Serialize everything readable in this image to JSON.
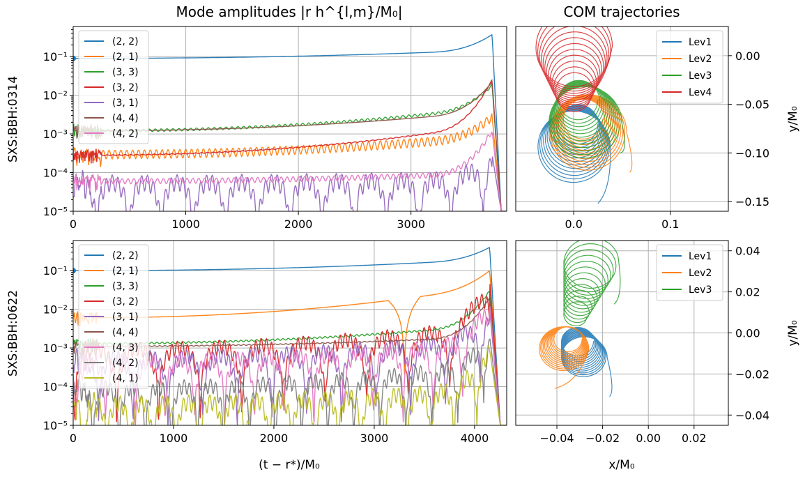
{
  "figure": {
    "left_title": "Mode amplitudes |r h^{l,m}/M₀|",
    "right_title": "COM trajectories",
    "xlabel_left": "(t − r*)/M₀",
    "xlabel_right": "x/M₀",
    "ylabel_right": "y/M₀",
    "row_labels": [
      "SXS:BBH:0314",
      "SXS:BBH:0622"
    ]
  },
  "colors": {
    "blue": "#1f77b4",
    "orange": "#ff7f0e",
    "green": "#2ca02c",
    "red": "#d62728",
    "purple": "#9467bd",
    "brown": "#8c564b",
    "pink": "#e377c2",
    "gray": "#7f7f7f",
    "olive": "#bcbd22"
  },
  "chart_data": [
    {
      "type": "line",
      "name": "amp_0314",
      "row_label": "SXS:BBH:0314",
      "title": "Mode amplitudes |r h^{l,m}/M₀|",
      "xlabel": "",
      "ylabel": "",
      "yscale": "log",
      "xlim": [
        0,
        3850
      ],
      "ylim": [
        1e-05,
        0.6
      ],
      "xticks": [
        0,
        1000,
        2000,
        3000
      ],
      "xticklabels": [
        "0",
        "1000",
        "2000",
        "3000"
      ],
      "yticks": [
        1e-05,
        0.0001,
        0.001,
        0.01,
        0.1
      ],
      "yticklabels": [
        "10⁻⁵",
        "10⁻⁴",
        "10⁻³",
        "10⁻²",
        "10⁻¹"
      ],
      "grid": true,
      "legend_position": "upper-left",
      "t_peak": 3720,
      "series": [
        {
          "name": "(2, 2)",
          "color": "blue",
          "start": 0.09,
          "end": 0.15,
          "peak": 0.37,
          "osc": 0,
          "dips": 0
        },
        {
          "name": "(2, 1)",
          "color": "orange",
          "start": 0.0003,
          "end": 0.0009,
          "peak": 0.0028,
          "osc": 0.5,
          "dips": 0
        },
        {
          "name": "(3, 3)",
          "color": "green",
          "start": 0.0012,
          "end": 0.005,
          "peak": 0.018,
          "osc": 0.15,
          "dips": 0
        },
        {
          "name": "(3, 2)",
          "color": "red",
          "start": 0.00028,
          "end": 0.0018,
          "peak": 0.025,
          "osc": 0.05,
          "dips": 0
        },
        {
          "name": "(3, 1)",
          "color": "purple",
          "start": 6e-05,
          "end": 8e-05,
          "peak": 0.0003,
          "osc": 0.9,
          "dips": 13
        },
        {
          "name": "(4, 4)",
          "color": "brown",
          "start": 0.0012,
          "end": 0.004,
          "peak": 0.022,
          "osc": 0,
          "dips": 0
        },
        {
          "name": "(4, 2)",
          "color": "pink",
          "start": 6e-05,
          "end": 0.0001,
          "peak": 0.0012,
          "osc": 0.3,
          "dips": 0
        }
      ]
    },
    {
      "type": "scatter",
      "name": "com_0314",
      "title": "COM trajectories",
      "xlabel": "",
      "ylabel": "y/M₀",
      "xlim": [
        -0.06,
        0.16
      ],
      "ylim": [
        -0.16,
        0.03
      ],
      "xticks": [
        0.0,
        0.1
      ],
      "xticklabels": [
        "0.0",
        "0.1"
      ],
      "yticks": [
        0.0,
        -0.05,
        -0.1,
        -0.15
      ],
      "yticklabels": [
        "0.00",
        "−0.05",
        "−0.10",
        "−0.15"
      ],
      "grid": true,
      "legend_position": "upper-right",
      "series": [
        {
          "name": "Lev1",
          "color": "blue",
          "center_start": [
            0.0,
            -0.095
          ],
          "center_end": [
            0.005,
            -0.07
          ],
          "r_start": 0.038,
          "r_end": 0.02,
          "loops": 12,
          "tail_end": [
            0.025,
            -0.152
          ]
        },
        {
          "name": "Lev2",
          "color": "orange",
          "center_start": [
            0.015,
            -0.08
          ],
          "center_end": [
            0.01,
            -0.065
          ],
          "r_start": 0.04,
          "r_end": 0.02,
          "loops": 12,
          "tail_end": [
            0.058,
            -0.12
          ]
        },
        {
          "name": "Lev3",
          "color": "green",
          "center_start": [
            0.012,
            -0.07
          ],
          "center_end": [
            0.005,
            -0.045
          ],
          "r_start": 0.038,
          "r_end": 0.02,
          "loops": 12,
          "tail_end": [
            0.048,
            -0.1
          ]
        },
        {
          "name": "Lev4",
          "color": "red",
          "center_start": [
            0.0,
            0.01
          ],
          "center_end": [
            0.0,
            -0.04
          ],
          "r_start": 0.04,
          "r_end": 0.018,
          "loops": 12,
          "tail_end": [
            0.01,
            -0.045
          ]
        }
      ]
    },
    {
      "type": "line",
      "name": "amp_0622",
      "row_label": "SXS:BBH:0622",
      "title": "",
      "xlabel": "(t − r*)/M₀",
      "ylabel": "",
      "yscale": "log",
      "xlim": [
        0,
        4320
      ],
      "ylim": [
        1e-05,
        0.6
      ],
      "xticks": [
        0,
        1000,
        2000,
        3000,
        4000
      ],
      "xticklabels": [
        "0",
        "1000",
        "2000",
        "3000",
        "4000"
      ],
      "yticks": [
        1e-05,
        0.0001,
        0.001,
        0.01,
        0.1
      ],
      "yticklabels": [
        "10⁻⁵",
        "10⁻⁴",
        "10⁻³",
        "10⁻²",
        "10⁻¹"
      ],
      "grid": true,
      "legend_position": "upper-left",
      "t_peak": 4150,
      "series": [
        {
          "name": "(2, 2)",
          "color": "blue",
          "start": 0.1,
          "end": 0.2,
          "peak": 0.4,
          "osc": 0,
          "dips": 0
        },
        {
          "name": "(2, 1)",
          "color": "orange",
          "start": 0.006,
          "end": 0.04,
          "peak": 0.1,
          "osc": 0,
          "dips": 0,
          "deep_dip": 3300
        },
        {
          "name": "(3, 3)",
          "color": "green",
          "start": 0.0013,
          "end": 0.004,
          "peak": 0.03,
          "osc": 0.1,
          "dips": 0
        },
        {
          "name": "(3, 2)",
          "color": "red",
          "start": 0.001,
          "end": 0.004,
          "peak": 0.06,
          "osc": 0.8,
          "dips": 10
        },
        {
          "name": "(3, 1)",
          "color": "purple",
          "start": 0.0006,
          "end": 0.002,
          "peak": 0.01,
          "osc": 0.8,
          "dips": 12
        },
        {
          "name": "(4, 4)",
          "color": "brown",
          "start": 0.0011,
          "end": 0.002,
          "peak": 0.02,
          "osc": 0.05,
          "dips": 0
        },
        {
          "name": "(4, 3)",
          "color": "pink",
          "start": 0.0005,
          "end": 0.0015,
          "peak": 0.015,
          "osc": 0.8,
          "dips": 14
        },
        {
          "name": "(4, 2)",
          "color": "gray",
          "start": 0.0001,
          "end": 0.0004,
          "peak": 0.002,
          "osc": 0.8,
          "dips": 16
        },
        {
          "name": "(4, 1)",
          "color": "olive",
          "start": 4e-05,
          "end": 0.0001,
          "peak": 0.0009,
          "osc": 0.9,
          "dips": 18
        }
      ]
    },
    {
      "type": "scatter",
      "name": "com_0622",
      "title": "",
      "xlabel": "x/M₀",
      "ylabel": "y/M₀",
      "xlim": [
        -0.058,
        0.035
      ],
      "ylim": [
        -0.045,
        0.045
      ],
      "xticks": [
        -0.04,
        -0.02,
        0.0,
        0.02
      ],
      "xticklabels": [
        "−0.04",
        "−0.02",
        "0.00",
        "0.02"
      ],
      "yticks": [
        0.04,
        0.02,
        0.0,
        -0.02,
        -0.04
      ],
      "yticklabels": [
        "0.04",
        "0.02",
        "0.00",
        "−0.02",
        "−0.04"
      ],
      "grid": true,
      "legend_position": "upper-right",
      "series": [
        {
          "name": "Lev1",
          "color": "blue",
          "center_start": [
            -0.028,
            -0.012
          ],
          "center_end": [
            -0.031,
            -0.004
          ],
          "r_start": 0.01,
          "r_end": 0.007,
          "loops": 12,
          "tail_end": [
            -0.017,
            -0.031
          ]
        },
        {
          "name": "Lev2",
          "color": "orange",
          "center_start": [
            -0.037,
            -0.008
          ],
          "center_end": [
            -0.035,
            -0.003
          ],
          "r_start": 0.011,
          "r_end": 0.006,
          "loops": 12,
          "tail_end": [
            -0.041,
            -0.027
          ]
        },
        {
          "name": "Lev3",
          "color": "green",
          "center_start": [
            -0.025,
            0.035
          ],
          "center_end": [
            -0.032,
            0.008
          ],
          "r_start": 0.012,
          "r_end": 0.005,
          "loops": 12,
          "tail_end": [
            -0.015,
            0.014
          ]
        }
      ]
    }
  ]
}
